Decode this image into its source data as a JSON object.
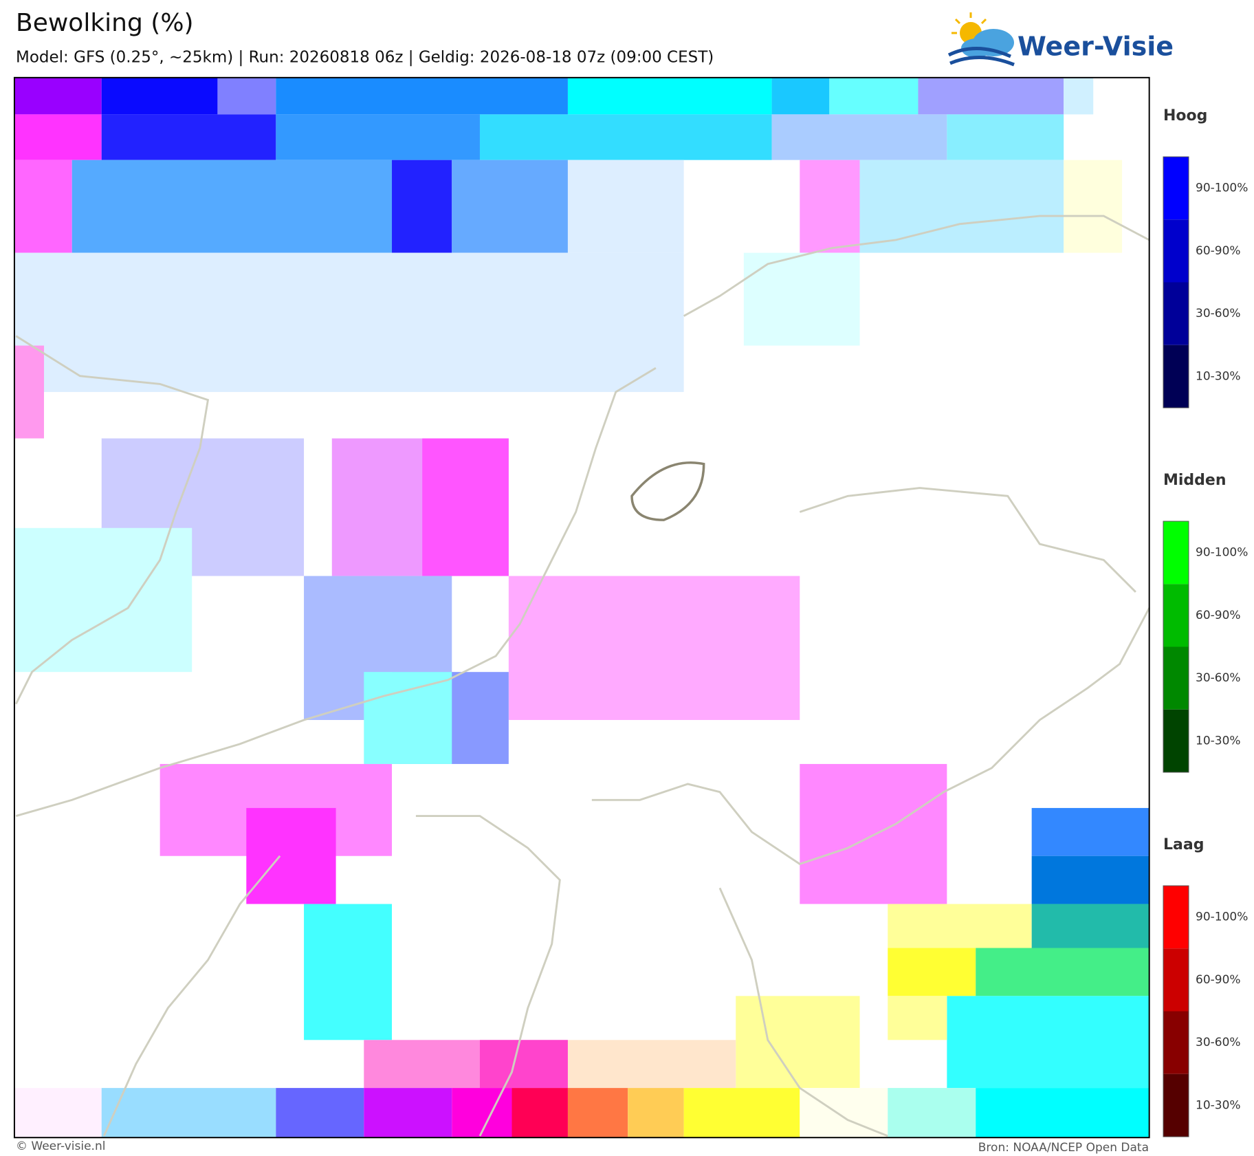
{
  "header": {
    "title": "Bewolking (%)",
    "subtitle": "Model: GFS (0.25°, ~25km)  |  Run: 20260818 06z  |  Geldig: 2026-08-18 07z (09:00 CEST)"
  },
  "logo": {
    "text": "Weer-Visie"
  },
  "legend": [
    {
      "title": "Hoog",
      "colors": [
        "#0000ff",
        "#0000cc",
        "#000099",
        "#000055"
      ],
      "labels": [
        "90-100%",
        "60-90%",
        "30-60%",
        "10-30%"
      ]
    },
    {
      "title": "Midden",
      "colors": [
        "#00ff00",
        "#00bb00",
        "#008800",
        "#004400"
      ],
      "labels": [
        "90-100%",
        "60-90%",
        "30-60%",
        "10-30%"
      ]
    },
    {
      "title": "Laag",
      "colors": [
        "#ff0000",
        "#cc0000",
        "#880000",
        "#550000"
      ],
      "labels": [
        "90-100%",
        "60-90%",
        "30-60%",
        "10-30%"
      ]
    }
  ],
  "footer": {
    "left": "© Weer-visie.nl",
    "right": "Bron: NOAA/NCEP Open Data"
  }
}
